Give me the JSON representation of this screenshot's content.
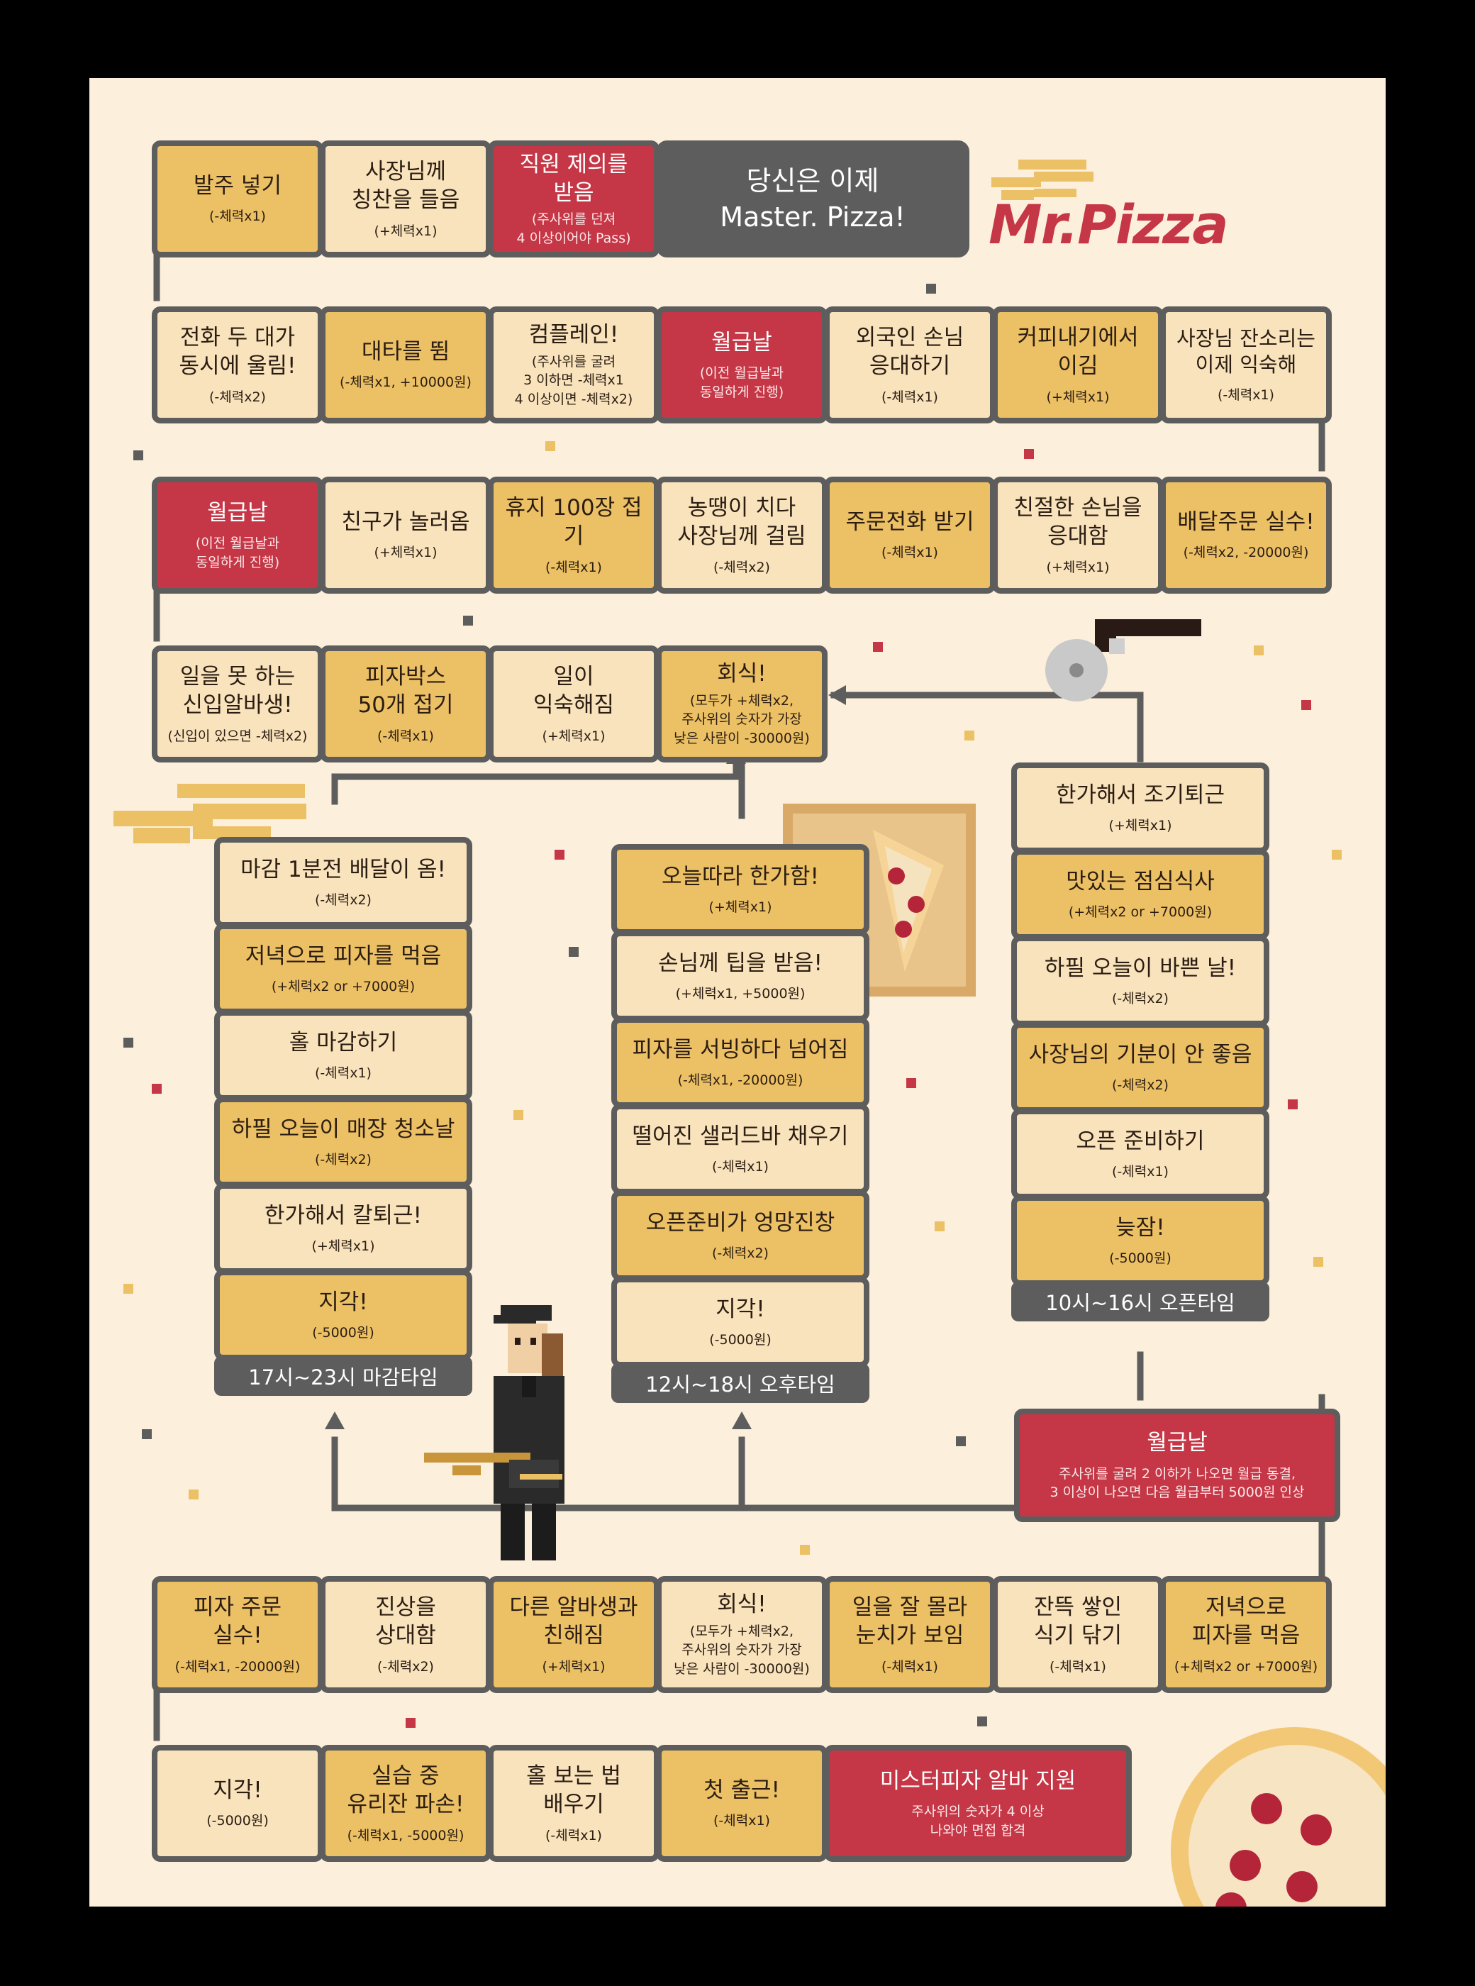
{
  "brand": {
    "name": "Mr.Pizza"
  },
  "colors": {
    "gold": "#ecc064",
    "cream": "#f9e3bd",
    "red": "#c53746",
    "gray": "#5d5d5d",
    "background": "#fcefdc"
  },
  "rows": {
    "row1": [
      {
        "title": "발주 넣기",
        "effect": "(-체력x1)",
        "color": "gold"
      },
      {
        "title": "사장님께\n칭찬을 들음",
        "effect": "(+체력x1)",
        "color": "cream"
      },
      {
        "title": "직원 제의를\n받음",
        "effect": "(주사위를 던져\n4 이상이어야 Pass)",
        "color": "red"
      },
      {
        "title": "당신은 이제\nMaster. Pizza!",
        "effect": "",
        "color": "gray"
      }
    ],
    "row2": [
      {
        "title": "전화 두 대가\n동시에 울림!",
        "effect": "(-체력x2)",
        "color": "cream"
      },
      {
        "title": "대타를 뜀",
        "effect": "(-체력x1, +10000원)",
        "color": "gold"
      },
      {
        "title": "컴플레인!",
        "effect": "(주사위를 굴려\n3 이하면 -체력x1\n4 이상이면 -체력x2)",
        "color": "cream"
      },
      {
        "title": "월급날",
        "effect": "(이전 월급날과\n동일하게 진행)",
        "color": "red"
      },
      {
        "title": "외국인 손님\n응대하기",
        "effect": "(-체력x1)",
        "color": "cream"
      },
      {
        "title": "커피내기에서\n이김",
        "effect": "(+체력x1)",
        "color": "gold"
      },
      {
        "title": "사장님 잔소리는\n이제 익숙해",
        "effect": "(-체력x1)",
        "color": "cream"
      }
    ],
    "row3": [
      {
        "title": "월급날",
        "effect": "(이전 월급날과\n동일하게 진행)",
        "color": "red"
      },
      {
        "title": "친구가 놀러옴",
        "effect": "(+체력x1)",
        "color": "cream"
      },
      {
        "title": "휴지 100장 접기",
        "effect": "(-체력x1)",
        "color": "gold"
      },
      {
        "title": "농땡이 치다\n사장님께 걸림",
        "effect": "(-체력x2)",
        "color": "cream"
      },
      {
        "title": "주문전화 받기",
        "effect": "(-체력x1)",
        "color": "gold"
      },
      {
        "title": "친절한 손님을\n응대함",
        "effect": "(+체력x1)",
        "color": "cream"
      },
      {
        "title": "배달주문 실수!",
        "effect": "(-체력x2, -20000원)",
        "color": "gold"
      }
    ],
    "row4": [
      {
        "title": "일을 못 하는\n신입알바생!",
        "effect": "(신입이 있으면 -체력x2)",
        "color": "cream"
      },
      {
        "title": "피자박스\n50개 접기",
        "effect": "(-체력x1)",
        "color": "gold"
      },
      {
        "title": "일이\n익숙해짐",
        "effect": "(+체력x1)",
        "color": "cream"
      },
      {
        "title": "회식!",
        "effect": "(모두가 +체력x2,\n주사위의 숫자가 가장\n낮은 사람이 -30000원)",
        "color": "gold"
      }
    ],
    "row_bottom1": [
      {
        "title": "피자 주문\n실수!",
        "effect": "(-체력x1, -20000원)",
        "color": "gold"
      },
      {
        "title": "진상을\n상대함",
        "effect": "(-체력x2)",
        "color": "cream"
      },
      {
        "title": "다른 알바생과\n친해짐",
        "effect": "(+체력x1)",
        "color": "gold"
      },
      {
        "title": "회식!",
        "effect": "(모두가 +체력x2,\n주사위의 숫자가 가장\n낮은 사람이 -30000원)",
        "color": "cream"
      },
      {
        "title": "일을 잘 몰라\n눈치가 보임",
        "effect": "(-체력x1)",
        "color": "gold"
      },
      {
        "title": "잔뜩 쌓인\n식기 닦기",
        "effect": "(-체력x1)",
        "color": "cream"
      },
      {
        "title": "저녁으로\n피자를 먹음",
        "effect": "(+체력x2 or +7000원)",
        "color": "gold"
      }
    ],
    "row_bottom2": [
      {
        "title": "지각!",
        "effect": "(-5000원)",
        "color": "cream"
      },
      {
        "title": "실습 중\n유리잔 파손!",
        "effect": "(-체력x1, -5000원)",
        "color": "gold"
      },
      {
        "title": "홀 보는 법\n배우기",
        "effect": "(-체력x1)",
        "color": "cream"
      },
      {
        "title": "첫 출근!",
        "effect": "(-체력x1)",
        "color": "gold"
      },
      {
        "title": "미스터피자 알바 지원",
        "effect": "주사위의 숫자가 4 이상\n나와야 면접 합격",
        "color": "red"
      }
    ]
  },
  "columns": {
    "closing": {
      "label": "17시~23시 마감타임",
      "cells": [
        {
          "title": "마감 1분전 배달이 옴!",
          "effect": "(-체력x2)",
          "color": "cream"
        },
        {
          "title": "저녁으로 피자를 먹음",
          "effect": "(+체력x2 or +7000원)",
          "color": "gold"
        },
        {
          "title": "홀 마감하기",
          "effect": "(-체력x1)",
          "color": "cream"
        },
        {
          "title": "하필 오늘이 매장 청소날",
          "effect": "(-체력x2)",
          "color": "gold"
        },
        {
          "title": "한가해서 칼퇴근!",
          "effect": "(+체력x1)",
          "color": "cream"
        },
        {
          "title": "지각!",
          "effect": "(-5000원)",
          "color": "gold"
        }
      ]
    },
    "afternoon": {
      "label": "12시~18시 오후타임",
      "cells": [
        {
          "title": "오늘따라 한가함!",
          "effect": "(+체력x1)",
          "color": "gold"
        },
        {
          "title": "손님께 팁을 받음!",
          "effect": "(+체력x1, +5000원)",
          "color": "cream"
        },
        {
          "title": "피자를 서빙하다 넘어짐",
          "effect": "(-체력x1, -20000원)",
          "color": "gold"
        },
        {
          "title": "떨어진 샐러드바 채우기",
          "effect": "(-체력x1)",
          "color": "cream"
        },
        {
          "title": "오픈준비가 엉망진창",
          "effect": "(-체력x2)",
          "color": "gold"
        },
        {
          "title": "지각!",
          "effect": "(-5000원)",
          "color": "cream"
        }
      ]
    },
    "open": {
      "label": "10시~16시 오픈타임",
      "cells": [
        {
          "title": "한가해서 조기퇴근",
          "effect": "(+체력x1)",
          "color": "cream"
        },
        {
          "title": "맛있는 점심식사",
          "effect": "(+체력x2 or +7000원)",
          "color": "gold"
        },
        {
          "title": "하필 오늘이 바쁜 날!",
          "effect": "(-체력x2)",
          "color": "cream"
        },
        {
          "title": "사장님의 기분이 안 좋음",
          "effect": "(-체력x2)",
          "color": "gold"
        },
        {
          "title": "오픈 준비하기",
          "effect": "(-체력x1)",
          "color": "cream"
        },
        {
          "title": "늦잠!",
          "effect": "(-5000원)",
          "color": "gold"
        }
      ]
    }
  },
  "payday_main": {
    "title": "월급날",
    "effect": "주사위를 굴려 2 이하가 나오면 월급 동결,\n3 이상이 나오면 다음 월급부터 5000원 인상",
    "color": "red"
  }
}
